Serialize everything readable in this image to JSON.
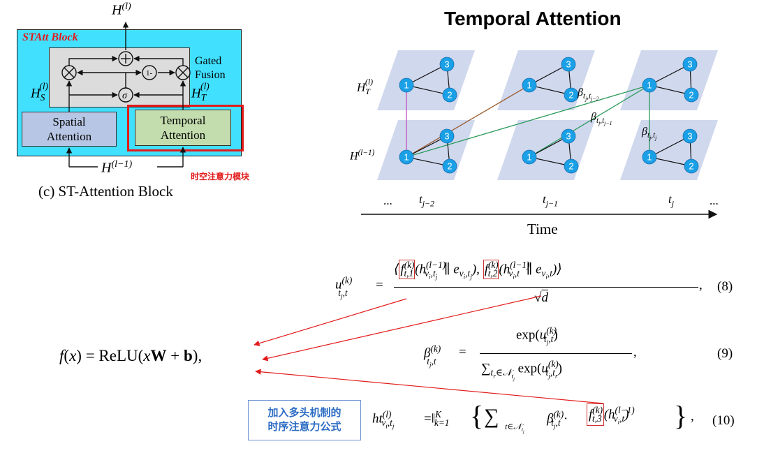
{
  "left_diagram": {
    "block_title": "STAtt Block",
    "top_output": "H(l)",
    "gated_fusion_label": "Gated\nFusion",
    "one_minus_label": "1-",
    "sigma_label": "σ",
    "hs_label": "HS(l)",
    "ht_label": "HT(l)",
    "spatial_label_1": "Spatial",
    "spatial_label_2": "Attention",
    "temporal_label_1": "Temporal",
    "temporal_label_2": "Attention",
    "input_label": "H(l−1)",
    "annotation_cn": "时空注意力模块",
    "caption": "(c) ST-Attention Block"
  },
  "right_diagram": {
    "title": "Temporal Attention",
    "ht_label": "HT(l)",
    "hprev_label": "H(l−1)",
    "beta_labels": [
      "βtj,tj−2",
      "βtj,tj−1",
      "βtj,tj"
    ],
    "time_labels": [
      "tj−2",
      "tj−1",
      "tj"
    ],
    "ellipsis": "...",
    "axis_label": "Time",
    "node_labels": [
      "1",
      "2",
      "3"
    ]
  },
  "equations": {
    "eq8_number": "(8)",
    "eq9_number": "(9)",
    "eq10_number": "(10)",
    "relu_formula": "f(x) = ReLU(xW + b),",
    "cn_note_line1": "加入多头机制的",
    "cn_note_line2": "时序注意力公式"
  },
  "colors": {
    "block_bg": "#41e0ff",
    "node_fill": "#1aa0e6",
    "plane_fill": "#d0d8ee",
    "highlight_red": "#e21b1b",
    "note_blue": "#2d6cc4"
  }
}
